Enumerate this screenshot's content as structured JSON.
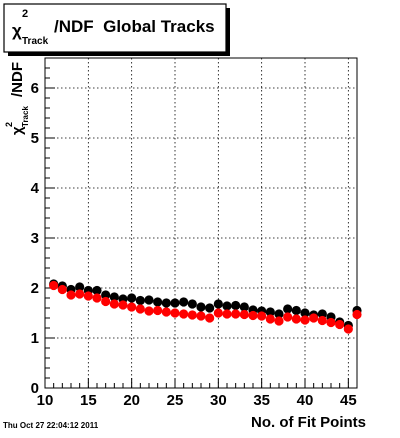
{
  "chart_data": {
    "type": "scatter",
    "title": {
      "symbol": "χ",
      "superscript": "2",
      "subscript": "Track",
      "text": "/NDF  Global Tracks"
    },
    "ylabel": {
      "symbol": "χ",
      "superscript": "2",
      "subscript": "Track",
      "text": "/NDF"
    },
    "xlabel": "No. of Fit Points",
    "xlim": [
      10,
      46
    ],
    "ylim": [
      0,
      6.6
    ],
    "x_ticks": [
      "10",
      "15",
      "20",
      "25",
      "30",
      "35",
      "40",
      "45"
    ],
    "y_ticks": [
      "0",
      "1",
      "2",
      "3",
      "4",
      "5",
      "6"
    ],
    "grid": true,
    "timestamp": "Thu Oct 27 22:04:12 2011",
    "series": [
      {
        "color": "#000000",
        "x": [
          11,
          12,
          13,
          14,
          15,
          16,
          17,
          18,
          19,
          20,
          21,
          22,
          23,
          24,
          25,
          26,
          27,
          28,
          29,
          30,
          31,
          32,
          33,
          34,
          35,
          36,
          37,
          38,
          39,
          40,
          41,
          42,
          43,
          44,
          45,
          46
        ],
        "y": [
          2.08,
          2.04,
          1.97,
          2.02,
          1.95,
          1.95,
          1.86,
          1.82,
          1.78,
          1.8,
          1.75,
          1.76,
          1.72,
          1.7,
          1.7,
          1.72,
          1.68,
          1.62,
          1.6,
          1.68,
          1.64,
          1.65,
          1.62,
          1.56,
          1.54,
          1.52,
          1.48,
          1.58,
          1.55,
          1.5,
          1.46,
          1.48,
          1.42,
          1.32,
          1.25,
          1.55
        ]
      },
      {
        "color": "#ff0000",
        "x": [
          11,
          12,
          13,
          14,
          15,
          16,
          17,
          18,
          19,
          20,
          21,
          22,
          23,
          24,
          25,
          26,
          27,
          28,
          29,
          30,
          31,
          32,
          33,
          34,
          35,
          36,
          37,
          38,
          39,
          40,
          41,
          42,
          43,
          44,
          45,
          46
        ],
        "y": [
          2.05,
          1.97,
          1.86,
          1.88,
          1.84,
          1.8,
          1.73,
          1.68,
          1.66,
          1.62,
          1.58,
          1.54,
          1.55,
          1.52,
          1.5,
          1.48,
          1.46,
          1.44,
          1.4,
          1.5,
          1.48,
          1.48,
          1.47,
          1.45,
          1.44,
          1.38,
          1.34,
          1.42,
          1.38,
          1.36,
          1.4,
          1.35,
          1.31,
          1.27,
          1.18,
          1.47
        ]
      }
    ]
  }
}
